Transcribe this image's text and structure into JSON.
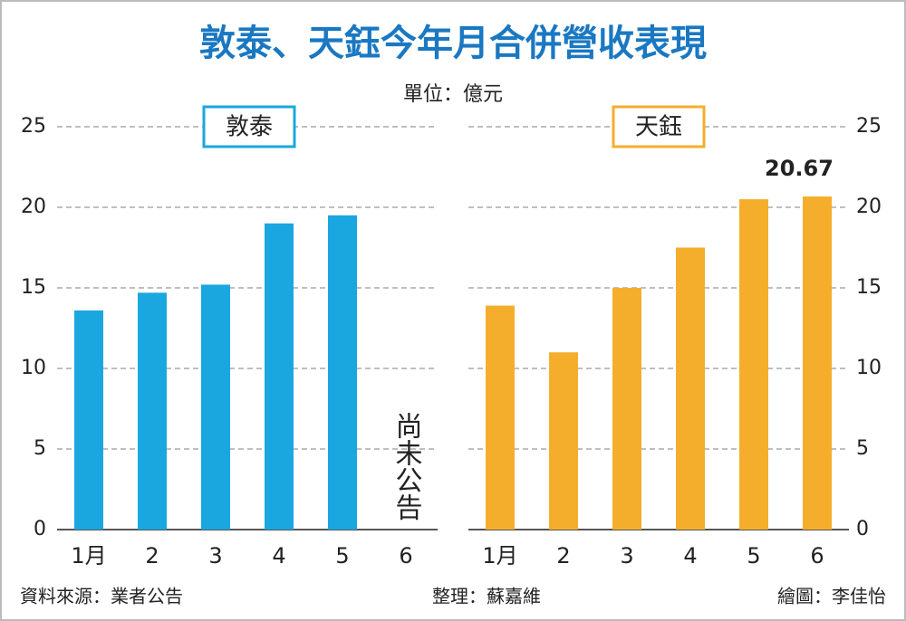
{
  "header": {
    "title": "敦泰、天鈺今年月合併營收表現",
    "subtitle": "單位：億元"
  },
  "footer": {
    "source": "資料來源：業者公告",
    "editor": "整理：蘇嘉維",
    "artist": "繪圖：李佳怡"
  },
  "chart_data": [
    {
      "type": "bar",
      "title": "敦泰",
      "categories": [
        "1月",
        "2",
        "3",
        "4",
        "5",
        "6"
      ],
      "values": [
        13.6,
        14.7,
        15.2,
        19.0,
        19.5,
        null
      ],
      "color": "#1aa7e0",
      "ylim": [
        0,
        25
      ],
      "yticks": [
        0,
        5,
        10,
        15,
        20,
        25
      ],
      "grid": true,
      "yaxis_side": "left",
      "annotations": [
        {
          "text": "尚未公告",
          "x": "6"
        }
      ]
    },
    {
      "type": "bar",
      "title": "天鈺",
      "categories": [
        "1月",
        "2",
        "3",
        "4",
        "5",
        "6"
      ],
      "values": [
        13.9,
        11.0,
        15.0,
        17.5,
        20.5,
        20.67
      ],
      "color": "#f5ae2c",
      "ylim": [
        0,
        25
      ],
      "yticks": [
        0,
        5,
        10,
        15,
        20,
        25
      ],
      "grid": true,
      "yaxis_side": "right",
      "value_label_indices": [
        5
      ]
    }
  ]
}
